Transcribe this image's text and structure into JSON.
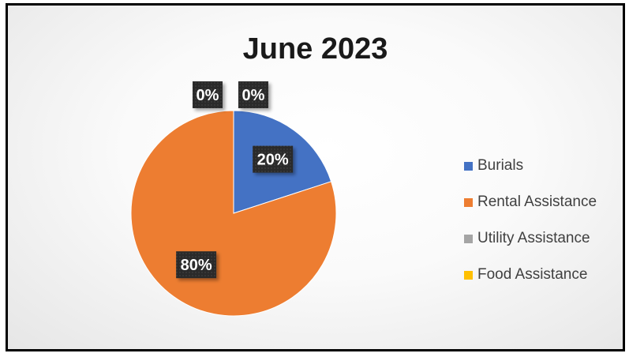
{
  "chart_data": {
    "type": "pie",
    "title": "June 2023",
    "categories": [
      "Burials",
      "Rental Assistance",
      "Utility Assistance",
      "Food Assistance"
    ],
    "values": [
      20,
      80,
      0,
      0
    ],
    "data_labels": [
      "20%",
      "80%",
      "0%",
      "0%"
    ],
    "colors": [
      "#4472c4",
      "#ed7d31",
      "#a5a5a5",
      "#ffc000"
    ],
    "legend_position": "right"
  }
}
